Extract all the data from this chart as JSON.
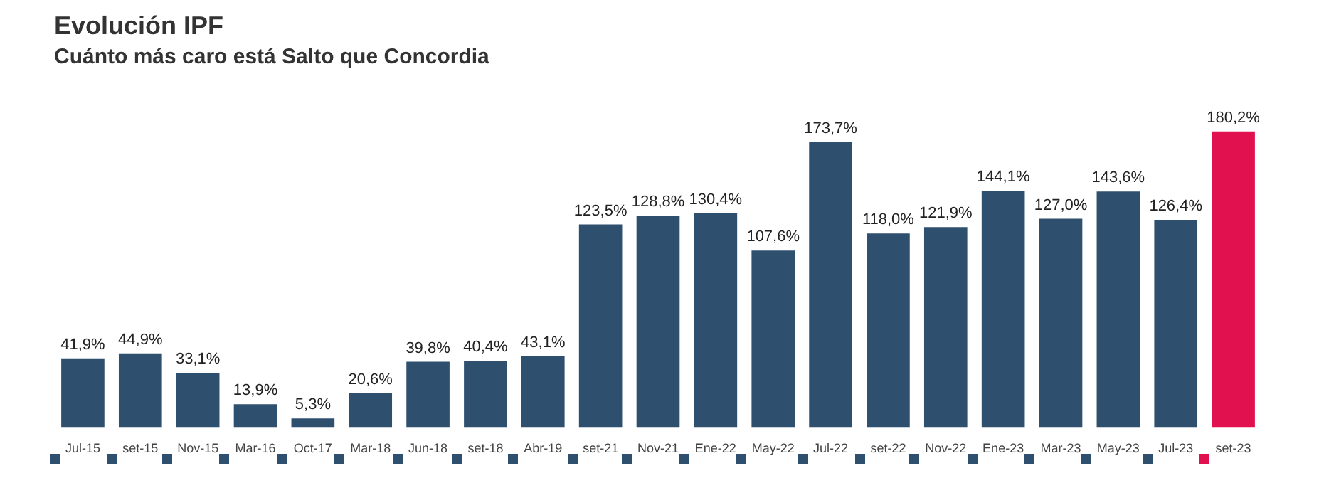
{
  "chart_data": {
    "type": "bar",
    "title": "Evolución IPF",
    "subtitle": "Cuánto más caro está Salto que Concordia",
    "categories": [
      "Jul-15",
      "set-15",
      "Nov-15",
      "Mar-16",
      "Oct-17",
      "Mar-18",
      "Jun-18",
      "set-18",
      "Abr-19",
      "set-21",
      "Nov-21",
      "Ene-22",
      "May-22",
      "Jul-22",
      "set-22",
      "Nov-22",
      "Ene-23",
      "Mar-23",
      "May-23",
      "Jul-23",
      "set-23"
    ],
    "values": [
      41.9,
      44.9,
      33.1,
      13.9,
      5.3,
      20.6,
      39.8,
      40.4,
      43.1,
      123.5,
      128.8,
      130.4,
      107.6,
      173.7,
      118.0,
      121.9,
      144.1,
      127.0,
      143.6,
      126.4,
      180.2
    ],
    "value_labels": [
      "41,9%",
      "44,9%",
      "33,1%",
      "13,9%",
      "5,3%",
      "20,6%",
      "39,8%",
      "40,4%",
      "43,1%",
      "123,5%",
      "128,8%",
      "130,4%",
      "107,6%",
      "173,7%",
      "118,0%",
      "121,9%",
      "144,1%",
      "127,0%",
      "143,6%",
      "126,4%",
      "180,2%"
    ],
    "colors": [
      "#2f4f6e",
      "#2f4f6e",
      "#2f4f6e",
      "#2f4f6e",
      "#2f4f6e",
      "#2f4f6e",
      "#2f4f6e",
      "#2f4f6e",
      "#2f4f6e",
      "#2f4f6e",
      "#2f4f6e",
      "#2f4f6e",
      "#2f4f6e",
      "#2f4f6e",
      "#2f4f6e",
      "#2f4f6e",
      "#2f4f6e",
      "#2f4f6e",
      "#2f4f6e",
      "#2f4f6e",
      "#e1104f"
    ],
    "tick_labels": "x"
  }
}
